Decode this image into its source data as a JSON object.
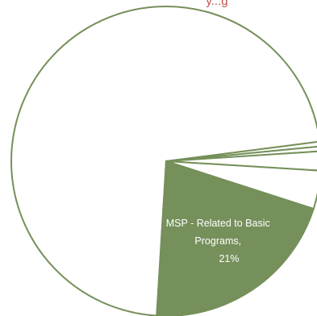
{
  "chart_data": {
    "type": "pie",
    "title": "",
    "title_fragment": "y...g",
    "slices": [
      {
        "name": "",
        "value": 72
      },
      {
        "name": "",
        "value": 0.5
      },
      {
        "name": "",
        "value": 0.5
      },
      {
        "name": "",
        "value": 2
      },
      {
        "name": "",
        "value": 4
      },
      {
        "name": "MSP - Related to Basic Programs,",
        "value": 21,
        "data_label_value": "21%"
      }
    ],
    "colors": {
      "highlight_fill": "#75905a",
      "default_fill": "#ffffff",
      "stroke": "#75905a",
      "title": "#c0504d",
      "label": "#ffffff"
    }
  }
}
